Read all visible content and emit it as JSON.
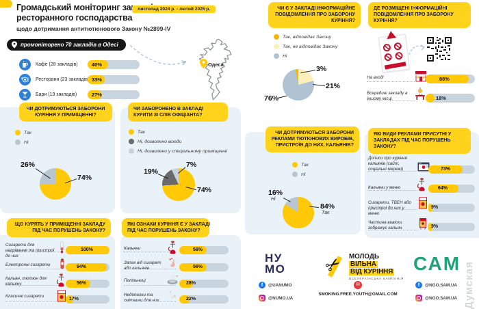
{
  "header": {
    "title_line1": "Громадський моніторинг закладів",
    "title_line2": "ресторанного господарства",
    "subtitle": "щодо дотримання антитютюнового Закону №2899-IV",
    "period_badge": "листопад 2024 р. - лютий 2025 р.",
    "monitored_pill": "промоніторено 70 закладів в Одесі",
    "map_label": "Одеса"
  },
  "colors": {
    "accent_yellow": "#FFC907",
    "chip_yellow": "#FFD21C",
    "panel_blue": "#E9F1F9",
    "gray_slice": "#B9C5CF",
    "dark_gray_slice": "#6A6A6C",
    "light_gray_slice": "#C9D3DC",
    "pale_yellow_slice": "#FBF0B9",
    "gold_slice": "#F2B70A",
    "blue_gray_slice": "#AFC3D3",
    "track_gray": "#C9D5DE",
    "pill_black": "#161616",
    "venue_icon_blue": "#2C81D6",
    "numo_navy": "#2B2D5B",
    "sam_green": "#1FA376",
    "red_accent": "#C8102E"
  },
  "chart_data": [
    {
      "id": "venues",
      "type": "bar",
      "title": "промоніторено 70 закладів в Одесі",
      "categories": [
        "Кафе (28 закладів)",
        "Ресторани (23 закладів)",
        "Бари (19 закладів)"
      ],
      "values": [
        40,
        33,
        27
      ],
      "pcts": [
        "40%",
        "33%",
        "27%"
      ],
      "icons": [
        "coffee-icon",
        "restaurant-icon",
        "bar-icon"
      ]
    },
    {
      "id": "indoor_ban",
      "type": "pie",
      "title_lines": [
        "ЧИ ДОТРИМУЮТЬСЯ ЗАБОРОНИ",
        "КУРІННЯ У ПРИМІЩЕННІ?"
      ],
      "slices": [
        {
          "label": "Так",
          "value": 74,
          "pct": "74%",
          "color": "#FFC907"
        },
        {
          "label": "Ні",
          "value": 26,
          "pct": "26%",
          "color": "#B9C5CF"
        }
      ]
    },
    {
      "id": "waiter_ban",
      "type": "pie",
      "title_lines": [
        "ЧИ ЗАБОРОНЕНО В ЗАКЛАДІ",
        "КУРИТИ ЗІ СЛІВ ОФІЦІАНТА?"
      ],
      "slices": [
        {
          "label": "Так",
          "value": 74,
          "pct": "74%",
          "color": "#FFC907"
        },
        {
          "label": "Ні, дозволено всюди",
          "value": 19,
          "pct": "19%",
          "color": "#6A6A6C"
        },
        {
          "label": "Ні, дозволено у спеціальному приміщенні",
          "value": 7,
          "pct": "7%",
          "color": "#C9D3DC"
        }
      ]
    },
    {
      "id": "what_smoked",
      "type": "bar",
      "title_lines": [
        "ЩО КУРЯТЬ У ПРИМІЩЕННІ ЗАКЛАДУ",
        "ПІД ЧАС ПОРУШЕНЬ ЗАКОНУ?"
      ],
      "categories": [
        "Сигарети для нагрівання та пристрої до них",
        "Електронні сигарети",
        "Кальян, тютюн для кальяну",
        "Класичні сигарети"
      ],
      "values": [
        100,
        94,
        56,
        17
      ],
      "pcts": [
        "100%",
        "94%",
        "56%",
        "17%"
      ],
      "icons": [
        "heat-stick-icon",
        "e-cigarette-icon",
        "hookah-icon",
        "cigarette-pack-icon"
      ]
    },
    {
      "id": "smoking_signs",
      "type": "bar",
      "title_lines": [
        "ЯКІ ОЗНАКИ КУРІННЯ Є У ЗАКЛАДІ",
        "ПІД ЧАС ПОРУШЕНЬ ЗАКОНУ?"
      ],
      "categories": [
        "Кальяни",
        "Запах від сигарет або кальянів",
        "Попільниці",
        "Недопалки та смітники для них"
      ],
      "values": [
        56,
        56,
        28,
        22
      ],
      "pcts": [
        "56%",
        "56%",
        "28%",
        "22%"
      ],
      "icons": [
        "hookah-icon",
        "nose-icon",
        "ashtray-icon",
        "cigarette-butt-icon"
      ]
    },
    {
      "id": "info_sign",
      "type": "pie",
      "title_lines": [
        "ЧИ Є У ЗАКЛАДІ ІНФОРМАЦІЙНЕ",
        "ПОВІДОМЛЕННЯ ПРО ЗАБОРОНУ",
        "КУРІННЯ?"
      ],
      "slices": [
        {
          "label": "Так, відповідає Закону",
          "value": 3,
          "pct": "3%",
          "color": "#F2B70A"
        },
        {
          "label": "Так, не відповідає Закону",
          "value": 21,
          "pct": "21%",
          "color": "#FBF0B9"
        },
        {
          "label": "Ні",
          "value": 76,
          "pct": "76%",
          "color": "#AFC3D3"
        }
      ]
    },
    {
      "id": "sign_location",
      "type": "bar",
      "title_lines": [
        "ДЕ РОЗМІЩЕНІ ІНФОРМАЦІЙНІ",
        "ПОВІДОМЛЕННЯ ПРО ЗАБОРОНУ",
        "КУРІННЯ?"
      ],
      "categories": [
        "На вході",
        "Всередині закладу в іншому місці"
      ],
      "values": [
        88,
        18
      ],
      "pcts": [
        "88%",
        "18%"
      ],
      "icons": [
        "storefront-icon",
        "indoor-table-icon"
      ]
    },
    {
      "id": "ads_ban",
      "type": "pie",
      "title_lines": [
        "ЧИ ДОТРИМУЮТЬСЯ ЗАБОРОНИ",
        "РЕКЛАМИ ТЮТЮНОВИХ ВИРОБІВ,",
        "ПРИСТРОЇВ ДО НИХ, КАЛЬЯНІВ?"
      ],
      "slices": [
        {
          "label": "Так",
          "value": 84,
          "pct": "84%",
          "color": "#FFC907"
        },
        {
          "label": "Ні",
          "value": 16,
          "pct": "16%",
          "color": "#B9C5CF"
        }
      ]
    },
    {
      "id": "ad_types",
      "type": "bar",
      "title_lines": [
        "ЯКІ ВИДИ РЕКЛАМИ ПРИСУТНІ У",
        "ЗАКЛАДАХ ПІД ЧАС ПОРУШЕНЬ",
        "ЗАКОНУ?"
      ],
      "categories": [
        "Дописи про куріння кальянів (сайт, соціальні мережі)",
        "Кальяни у меню",
        "Сигарети, ТВЕН або пристрої до них у меню",
        "Частина вивіски зображує кальян"
      ],
      "values": [
        73,
        64,
        9,
        9
      ],
      "pcts": [
        "73%",
        "64%",
        "9%",
        "9%"
      ],
      "icons": [
        "browser-icon",
        "hookah-icon",
        "cigarette-pack-icon",
        "signboard-icon"
      ]
    }
  ],
  "footer": {
    "numo": {
      "name_line1": "НУ",
      "name_line2": "МО",
      "fb": "@UANUMO",
      "ig": "@NUMO.UA"
    },
    "campaign": {
      "line1": "МОЛОДЬ",
      "line2": "ВІЛЬНА",
      "line3": "ВІД КУРІННЯ",
      "tagline": "ВСЕУКРАЇНСЬКА КАМПАНІЯ",
      "email": "SMOKING.FREE.YOUTH@GMAIL.COM"
    },
    "sam": {
      "name": "САМ",
      "fb": "@NGO.SAM.UA",
      "ig": "@NGO.SAM.UA"
    },
    "watermark": "Думская"
  }
}
